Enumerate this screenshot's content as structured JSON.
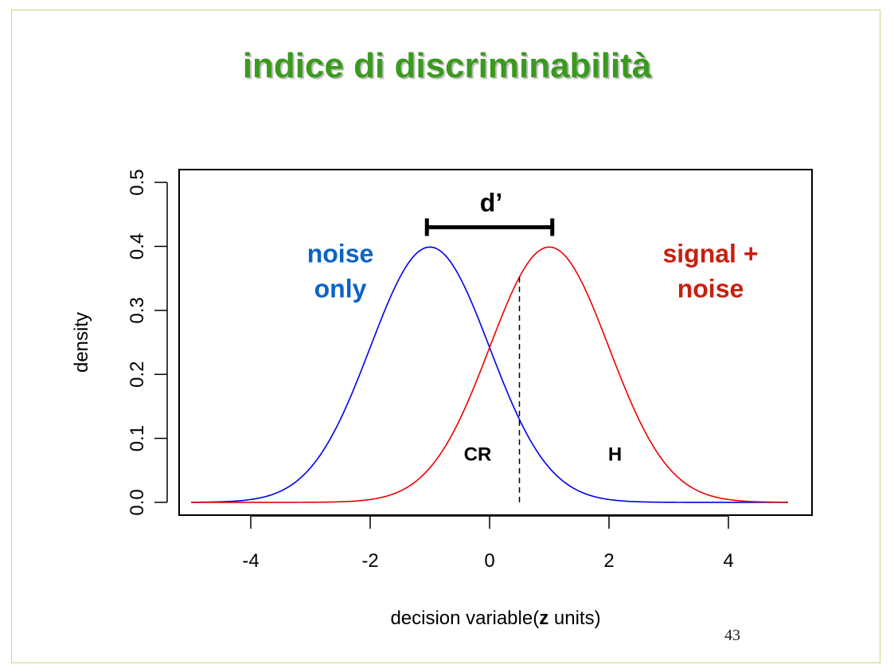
{
  "slide": {
    "title": "indice di discriminabilità",
    "page_number": "43"
  },
  "chart_data": {
    "type": "line",
    "xlabel_plain": "decision variable(",
    "xlabel_bold": "z",
    "xlabel_rest": " units)",
    "ylabel": "density",
    "xlim": [
      -5.2,
      5.4
    ],
    "ylim": [
      -0.02,
      0.52
    ],
    "x_ticks": [
      -4,
      -2,
      0,
      2,
      4
    ],
    "x_tick_labels": [
      "-4",
      "-2",
      "0",
      "2",
      "4"
    ],
    "y_ticks": [
      0.0,
      0.1,
      0.2,
      0.3,
      0.4,
      0.5
    ],
    "y_tick_labels": [
      "0.0",
      "0.1",
      "0.2",
      "0.3",
      "0.4",
      "0.5"
    ],
    "x_range": [
      -5,
      5
    ],
    "series": [
      {
        "name": "noise only",
        "mean": -1,
        "sd": 1,
        "color": "#0000ee"
      },
      {
        "name": "signal + noise",
        "mean": 1,
        "sd": 1,
        "color": "#ee0000"
      }
    ],
    "criterion": 0.5,
    "dprime_bar": {
      "from": -1.05,
      "to": 1.05,
      "y": 0.43,
      "label": "d’"
    },
    "annotations": [
      {
        "id": "noise-label",
        "lines": [
          "noise",
          "only"
        ],
        "x": -2.5,
        "y": 0.375,
        "color": "#0b63c6"
      },
      {
        "id": "signal-label",
        "lines": [
          "signal +",
          "noise"
        ],
        "x": 3.7,
        "y": 0.375,
        "color": "#c8200e"
      },
      {
        "id": "cr-label",
        "text": "CR",
        "x": -0.2,
        "y": 0.065
      },
      {
        "id": "h-label",
        "text": "H",
        "x": 2.1,
        "y": 0.065
      }
    ],
    "grid": false,
    "legend": "none"
  }
}
